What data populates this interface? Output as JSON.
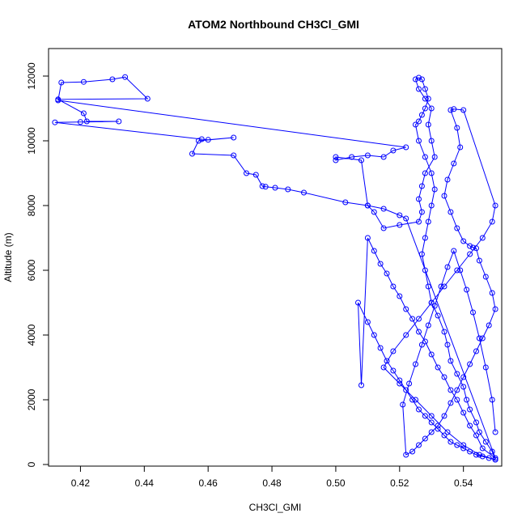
{
  "chart_data": {
    "type": "line",
    "title": "ATOM2 Northbound CH3Cl_GMI",
    "xlabel": "CH3Cl_GMI",
    "ylabel": "Altitude (m)",
    "xlim": [
      0.41,
      0.552
    ],
    "ylim": [
      -50,
      12850
    ],
    "xticks": [
      0.42,
      0.44,
      0.46,
      0.48,
      0.5,
      0.52,
      0.54
    ],
    "xtick_labels": [
      "0.42",
      "0.44",
      "0.46",
      "0.48",
      "0.50",
      "0.52",
      "0.54"
    ],
    "yticks": [
      0,
      2000,
      4000,
      6000,
      8000,
      10000,
      12000
    ],
    "ytick_labels": [
      "0",
      "2000",
      "4000",
      "6000",
      "8000",
      "10000",
      "12000"
    ],
    "grid": false,
    "series": [
      {
        "color": "#0000ff",
        "marker": "open-circle",
        "x": [
          0.55,
          0.549,
          0.547,
          0.545,
          0.544,
          0.542,
          0.541,
          0.54,
          0.538,
          0.536,
          0.535,
          0.534,
          0.532,
          0.53,
          0.529,
          0.528,
          0.527,
          0.528,
          0.529,
          0.53,
          0.531,
          0.53,
          0.528,
          0.526,
          0.525,
          0.526,
          0.527,
          0.528,
          0.529,
          0.528,
          0.527,
          0.526,
          0.525,
          0.526,
          0.528,
          0.53,
          0.529,
          0.53,
          0.531,
          0.528,
          0.527,
          0.526,
          0.527,
          0.526,
          0.52,
          0.515,
          0.512,
          0.51,
          0.508,
          0.5,
          0.5,
          0.505,
          0.51,
          0.515,
          0.518,
          0.522,
          0.413,
          0.414,
          0.421,
          0.43,
          0.434,
          0.441,
          0.413,
          0.421,
          0.422,
          0.432,
          0.42,
          0.412,
          0.458,
          0.46,
          0.468,
          0.457,
          0.455,
          0.468,
          0.472,
          0.475,
          0.477,
          0.478,
          0.481,
          0.485,
          0.49,
          0.503,
          0.51,
          0.515,
          0.52,
          0.522,
          0.55,
          0.546,
          0.544,
          0.542,
          0.54,
          0.538,
          0.536,
          0.534,
          0.532,
          0.53,
          0.528,
          0.526,
          0.524,
          0.522,
          0.52,
          0.518,
          0.516,
          0.514,
          0.512,
          0.51,
          0.508,
          0.507,
          0.51,
          0.512,
          0.514,
          0.516,
          0.518,
          0.52,
          0.522,
          0.524,
          0.526,
          0.528,
          0.53,
          0.532,
          0.534,
          0.536,
          0.538,
          0.54,
          0.542,
          0.544,
          0.546,
          0.548,
          0.55,
          0.545,
          0.54,
          0.535,
          0.53,
          0.525,
          0.52,
          0.515,
          0.518,
          0.522,
          0.526,
          0.53,
          0.534,
          0.538,
          0.542,
          0.546,
          0.549,
          0.55,
          0.54,
          0.537,
          0.536,
          0.538,
          0.539,
          0.537,
          0.535,
          0.534,
          0.536,
          0.538,
          0.54,
          0.542,
          0.543,
          0.544,
          0.545,
          0.547,
          0.549,
          0.55,
          0.548,
          0.546,
          0.544,
          0.542,
          0.54,
          0.538,
          0.536,
          0.534,
          0.532,
          0.53,
          0.528,
          0.526,
          0.524,
          0.522,
          0.521,
          0.523,
          0.525,
          0.527,
          0.529,
          0.531,
          0.533,
          0.535,
          0.537,
          0.539,
          0.541,
          0.543,
          0.545,
          0.547,
          0.549,
          0.55
        ],
        "y": [
          150,
          400,
          700,
          1000,
          1300,
          1700,
          2000,
          2400,
          2800,
          3200,
          3700,
          4100,
          4600,
          5000,
          5500,
          6000,
          6500,
          7000,
          7500,
          8000,
          8500,
          9000,
          9500,
          10000,
          10500,
          10600,
          10800,
          11000,
          11300,
          11600,
          11900,
          11950,
          11900,
          11600,
          11300,
          11000,
          10500,
          10000,
          9500,
          9000,
          8600,
          8200,
          7800,
          7500,
          7400,
          7300,
          7800,
          8000,
          9400,
          9500,
          9400,
          9500,
          9550,
          9500,
          9700,
          9800,
          11250,
          11800,
          11820,
          11900,
          11970,
          11300,
          11280,
          10850,
          10600,
          10600,
          10580,
          10570,
          10050,
          10030,
          10100,
          10000,
          9600,
          9550,
          9000,
          8950,
          8600,
          8580,
          8550,
          8500,
          8400,
          8100,
          8000,
          7900,
          7700,
          7600,
          200,
          500,
          900,
          1200,
          1600,
          2000,
          2300,
          2700,
          3000,
          3400,
          3800,
          4100,
          4500,
          4800,
          5200,
          5500,
          5900,
          6200,
          6600,
          7000,
          2450,
          5000,
          4400,
          4000,
          3600,
          3200,
          2900,
          2600,
          2300,
          2000,
          1700,
          1500,
          1300,
          1100,
          900,
          700,
          600,
          500,
          400,
          300,
          250,
          200,
          150,
          300,
          600,
          1000,
          1500,
          2000,
          2500,
          3000,
          3500,
          4000,
          4500,
          5000,
          5500,
          6000,
          6500,
          7000,
          7500,
          8000,
          10950,
          10980,
          10950,
          10400,
          9800,
          9300,
          8800,
          8300,
          7800,
          7300,
          6900,
          6750,
          6700,
          6680,
          6300,
          5800,
          5300,
          4800,
          4300,
          3900,
          3500,
          3100,
          2700,
          2300,
          1900,
          1500,
          1200,
          1000,
          800,
          600,
          400,
          300,
          1850,
          2500,
          3100,
          3700,
          4300,
          4900,
          5500,
          6100,
          6600,
          6000,
          5400,
          4700,
          3900,
          3000,
          2000,
          1000
        ]
      }
    ]
  }
}
